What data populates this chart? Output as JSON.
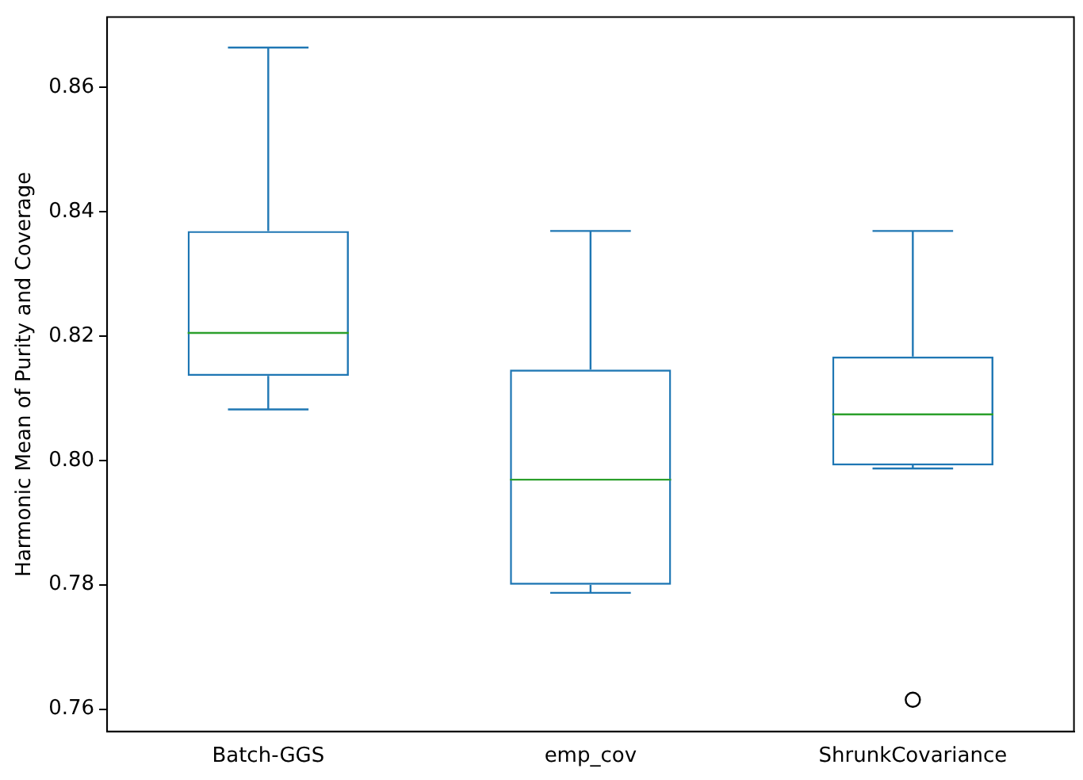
{
  "chart_data": {
    "type": "box",
    "ylabel": "Harmonic Mean of Purity and Coverage",
    "categories": [
      "Batch-GGS",
      "emp_cov",
      "ShrunkCovariance"
    ],
    "color": "#1f77b4",
    "boxes": [
      {
        "low": 0.8082,
        "q1": 0.8136,
        "median": 0.8205,
        "q3": 0.8369,
        "high": 0.8664
      },
      {
        "low": 0.7787,
        "q1": 0.78,
        "median": 0.7969,
        "q3": 0.8146,
        "high": 0.8369
      },
      {
        "low": 0.7987,
        "q1": 0.7992,
        "median": 0.8074,
        "q3": 0.8167,
        "high": 0.8369,
        "outliers": [
          0.7615
        ]
      }
    ],
    "ylim": [
      0.7564,
      0.8713
    ],
    "yticks": [
      {
        "value": 0.76,
        "label": "0.76"
      },
      {
        "value": 0.78,
        "label": "0.78"
      },
      {
        "value": 0.8,
        "label": "0.80"
      },
      {
        "value": 0.82,
        "label": "0.82"
      },
      {
        "value": 0.84,
        "label": "0.84"
      },
      {
        "value": 0.86,
        "label": "0.86"
      }
    ],
    "grid": false,
    "legend": false
  }
}
